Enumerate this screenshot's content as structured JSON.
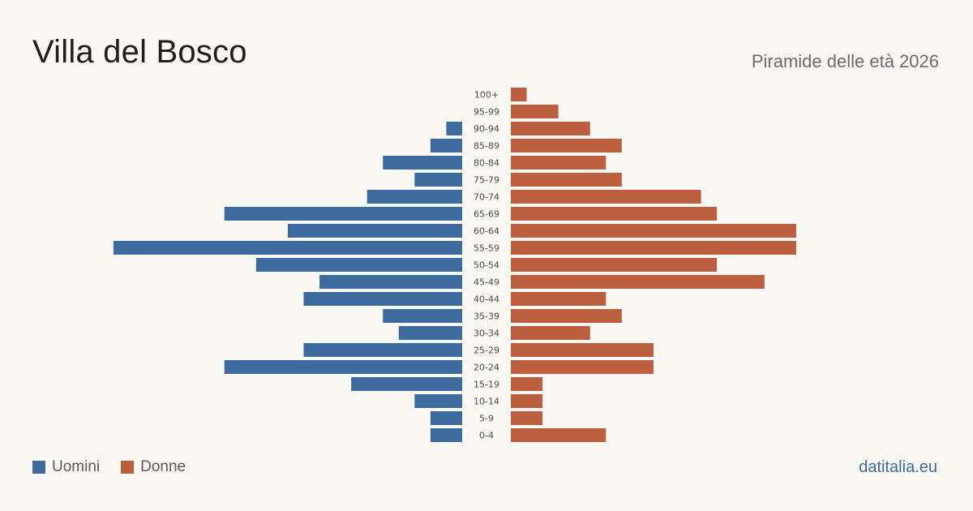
{
  "header": {
    "title": "Villa del Bosco",
    "subtitle": "Piramide delle età 2026"
  },
  "legend": {
    "men_label": "Uomini",
    "women_label": "Donne"
  },
  "source": "datitalia.eu",
  "colors": {
    "men": "#3d6b9e",
    "women": "#bc5f3e",
    "source": "#3d6b9e"
  },
  "chart_data": {
    "type": "bar",
    "orientation": "horizontal-pyramid",
    "categories": [
      "100+",
      "95-99",
      "90-94",
      "85-89",
      "80-84",
      "75-79",
      "70-74",
      "65-69",
      "60-64",
      "55-59",
      "50-54",
      "45-49",
      "40-44",
      "35-39",
      "30-34",
      "25-29",
      "20-24",
      "15-19",
      "10-14",
      "5-9",
      "0-4"
    ],
    "series": [
      {
        "name": "Uomini",
        "side": "left",
        "values": [
          0,
          0,
          1,
          2,
          5,
          3,
          6,
          15,
          11,
          22,
          13,
          9,
          10,
          5,
          4,
          10,
          15,
          7,
          3,
          2,
          2
        ]
      },
      {
        "name": "Donne",
        "side": "right",
        "values": [
          1,
          3,
          5,
          7,
          6,
          7,
          12,
          13,
          18,
          18,
          13,
          16,
          6,
          7,
          5,
          9,
          9,
          2,
          2,
          2,
          6
        ]
      }
    ],
    "grid": false,
    "legend_position": "bottom-left"
  }
}
